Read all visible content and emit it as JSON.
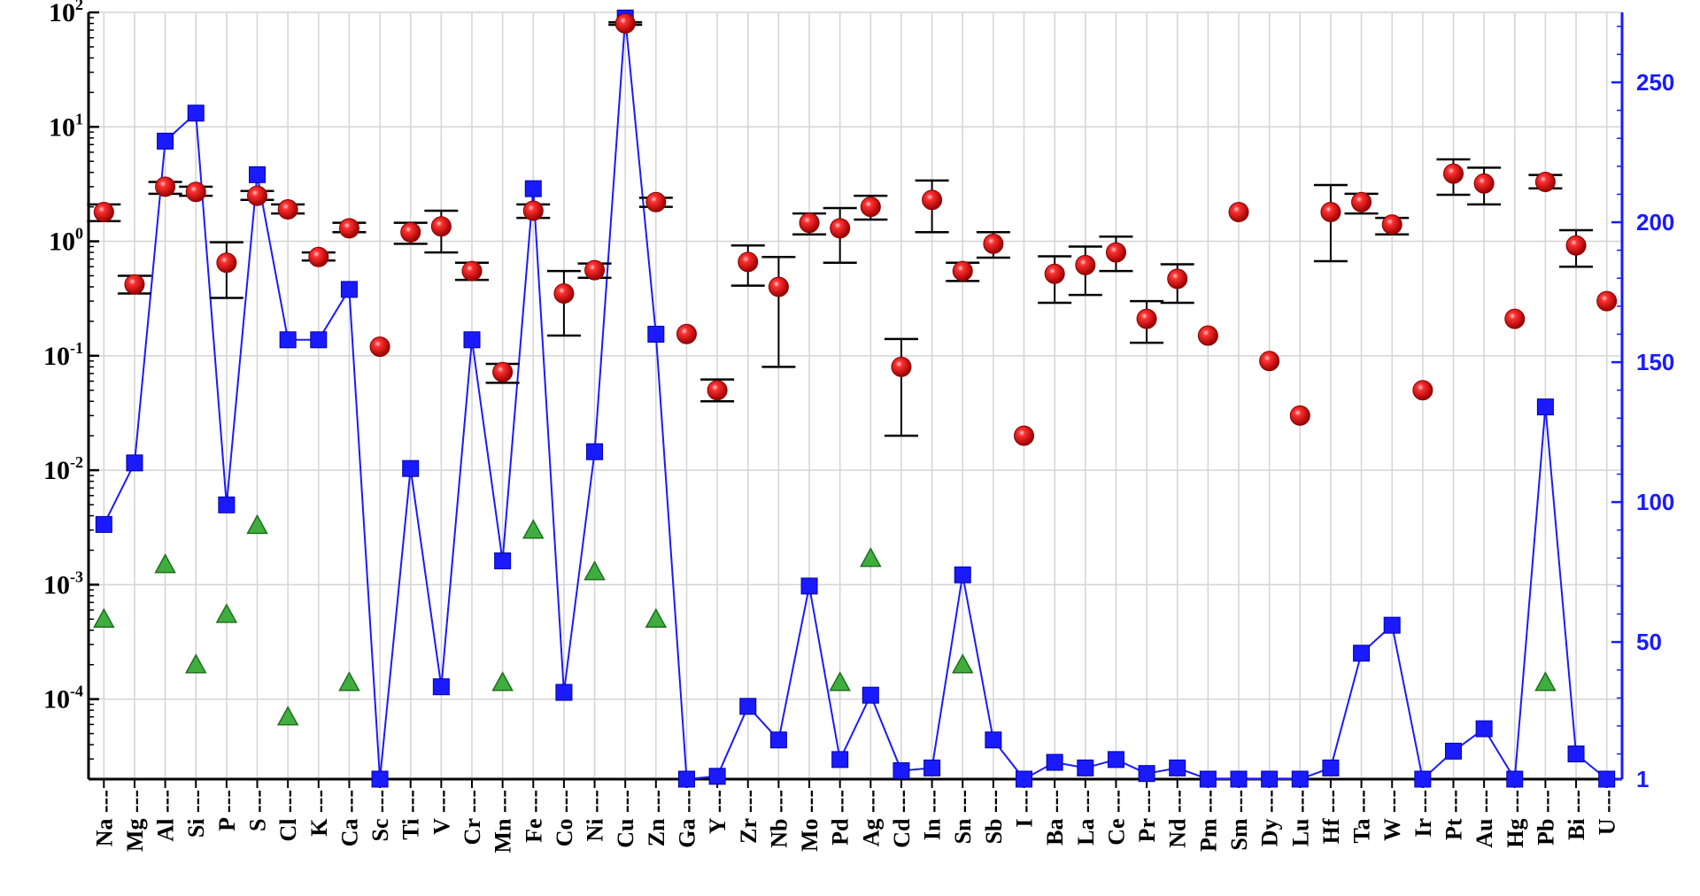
{
  "chart_data": {
    "type": "scatter",
    "title": "",
    "xlabel": "",
    "categories": [
      "Na",
      "Mg",
      "Al",
      "Si",
      "P",
      "S",
      "Cl",
      "K",
      "Ca",
      "Sc",
      "Ti",
      "V",
      "Cr",
      "Mn",
      "Fe",
      "Co",
      "Ni",
      "Cu",
      "Zn",
      "Ga",
      "Y",
      "Zr",
      "Nb",
      "Mo",
      "Pd",
      "Ag",
      "Cd",
      "In",
      "Sn",
      "Sb",
      "I",
      "Ba",
      "La",
      "Ce",
      "Pr",
      "Nd",
      "Pm",
      "Sm",
      "Dy",
      "Lu",
      "Hf",
      "Ta",
      "W",
      "Ir",
      "Pt",
      "Au",
      "Hg",
      "Pb",
      "Bi",
      "U"
    ],
    "left_axis": {
      "scale": "log",
      "ylim": [
        2e-05,
        100
      ],
      "ticks": [
        {
          "base": "10",
          "exp": "2"
        },
        {
          "base": "10",
          "exp": "1"
        },
        {
          "base": "10",
          "exp": "0"
        },
        {
          "base": "10",
          "exp": "-1"
        },
        {
          "base": "10",
          "exp": "-2"
        },
        {
          "base": "10",
          "exp": "-3"
        },
        {
          "base": "10",
          "exp": "-4"
        }
      ],
      "tick_values": [
        100,
        10,
        1,
        0.1,
        0.01,
        0.001,
        0.0001
      ],
      "color": "#000000"
    },
    "right_axis": {
      "scale": "linear",
      "ylim": [
        1,
        275
      ],
      "ticks": [
        "1",
        "50",
        "100",
        "150",
        "200",
        "250"
      ],
      "tick_values": [
        1,
        50,
        100,
        150,
        200,
        250
      ],
      "color": "#1a1aff"
    },
    "grid": true,
    "series": [
      {
        "marker": "red-sphere",
        "axis": "left",
        "color": "#e00000",
        "values": [
          1.8,
          0.42,
          3.0,
          2.7,
          0.65,
          2.5,
          1.9,
          0.73,
          1.3,
          0.12,
          1.2,
          1.35,
          0.55,
          0.072,
          1.85,
          0.35,
          0.56,
          80,
          2.2,
          0.155,
          0.05,
          0.66,
          0.4,
          1.45,
          1.3,
          2.0,
          0.08,
          2.3,
          0.55,
          0.95,
          0.02,
          0.52,
          0.62,
          0.8,
          0.21,
          0.47,
          0.15,
          1.8,
          0.09,
          0.03,
          1.8,
          2.2,
          1.4,
          0.05,
          3.9,
          3.2,
          0.21,
          3.3,
          0.92,
          0.3
        ],
        "error_low": [
          1.5,
          0.35,
          2.6,
          2.5,
          0.32,
          2.3,
          1.75,
          0.68,
          1.2,
          null,
          0.95,
          0.8,
          0.46,
          0.058,
          1.6,
          0.15,
          0.48,
          78,
          2.0,
          null,
          0.04,
          0.41,
          0.08,
          1.15,
          0.65,
          1.55,
          0.02,
          1.2,
          0.45,
          0.72,
          null,
          0.29,
          0.34,
          0.55,
          0.13,
          0.29,
          null,
          null,
          null,
          null,
          0.67,
          1.75,
          1.15,
          null,
          2.55,
          2.1,
          null,
          2.9,
          0.6,
          null
        ],
        "error_high": [
          2.1,
          0.5,
          3.3,
          3.0,
          0.98,
          2.75,
          2.1,
          0.8,
          1.45,
          null,
          1.45,
          1.85,
          0.65,
          0.085,
          2.1,
          0.55,
          0.64,
          82,
          2.4,
          null,
          0.062,
          0.92,
          0.73,
          1.75,
          1.95,
          2.5,
          0.14,
          3.4,
          0.65,
          1.2,
          null,
          0.74,
          0.9,
          1.1,
          0.3,
          0.63,
          null,
          null,
          null,
          null,
          3.1,
          2.6,
          1.6,
          null,
          5.2,
          4.4,
          null,
          3.8,
          1.25,
          null
        ]
      },
      {
        "marker": "blue-square-line",
        "axis": "right",
        "color": "#1a1aff",
        "values": [
          92,
          114,
          229,
          239,
          99,
          217,
          158,
          158,
          176,
          1,
          112,
          34,
          158,
          79,
          212,
          32,
          118,
          273,
          160,
          1,
          2,
          27,
          15,
          70,
          8,
          31,
          4,
          5,
          74,
          15,
          1,
          7,
          5,
          8,
          3,
          5,
          1,
          1,
          1,
          1,
          5,
          46,
          56,
          1,
          11,
          19,
          1,
          134,
          10,
          1
        ]
      },
      {
        "marker": "green-triangle",
        "axis": "left",
        "color": "#2a9a2a",
        "values": [
          0.0005,
          null,
          0.0015,
          0.0002,
          0.00055,
          0.0033,
          7e-05,
          null,
          0.00014,
          null,
          null,
          null,
          null,
          0.00014,
          0.003,
          null,
          0.0013,
          null,
          0.0005,
          null,
          null,
          null,
          null,
          null,
          0.00014,
          0.0017,
          null,
          null,
          0.0002,
          null,
          null,
          null,
          null,
          null,
          null,
          null,
          null,
          null,
          null,
          null,
          null,
          null,
          null,
          null,
          null,
          null,
          null,
          0.00014,
          null,
          null
        ]
      }
    ]
  }
}
